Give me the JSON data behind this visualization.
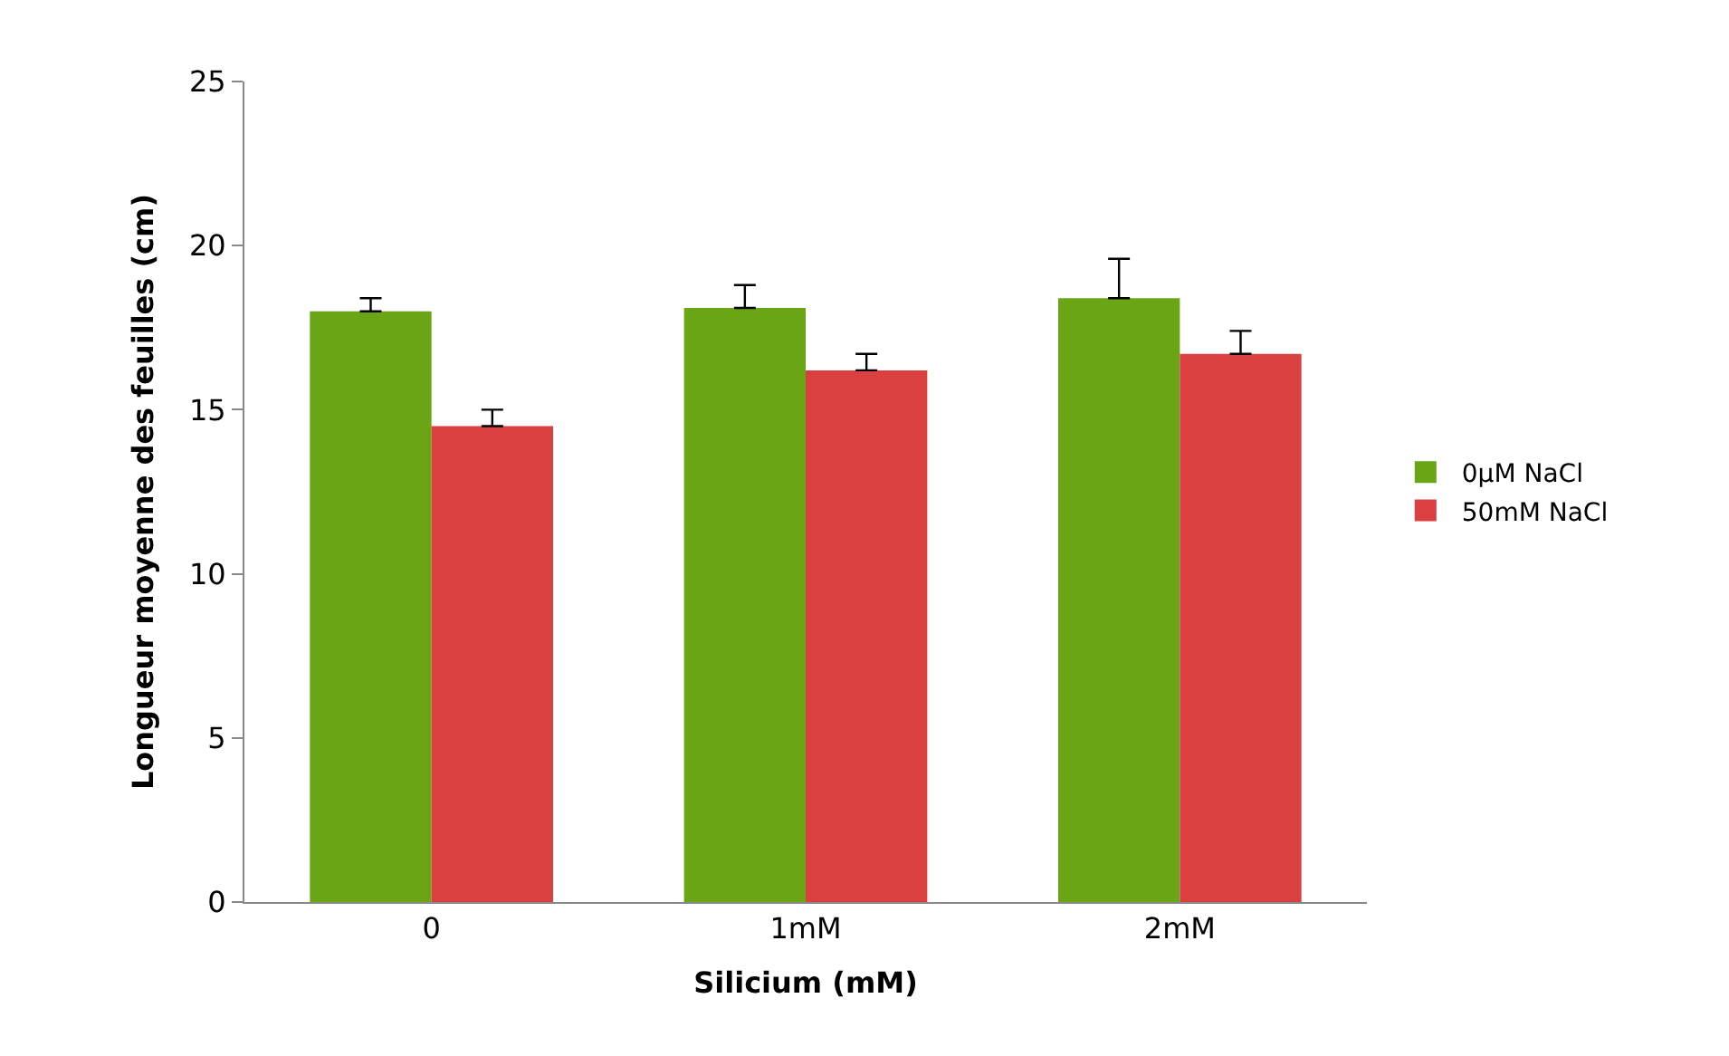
{
  "chart_data": {
    "type": "bar",
    "xlabel": "Silicium (mM)",
    "ylabel": "Longueur moyenne des feuilles (cm)",
    "categories": [
      "0",
      "1mM",
      "2mM"
    ],
    "series": [
      {
        "name": "0µM NaCl",
        "color": "#6aa516",
        "values": [
          18.0,
          18.1,
          18.4
        ],
        "errors": [
          [
            18.0,
            18.4
          ],
          [
            18.1,
            18.8
          ],
          [
            18.4,
            19.6
          ]
        ]
      },
      {
        "name": "50mM NaCl",
        "color": "#d9403f",
        "values": [
          14.5,
          16.2,
          16.7
        ],
        "errors": [
          [
            14.5,
            15.0
          ],
          [
            16.2,
            16.7
          ],
          [
            16.7,
            17.4
          ]
        ]
      }
    ],
    "ylim": [
      0,
      25
    ],
    "yticks": [
      0,
      5,
      10,
      15,
      20,
      25
    ],
    "legend": "right"
  }
}
